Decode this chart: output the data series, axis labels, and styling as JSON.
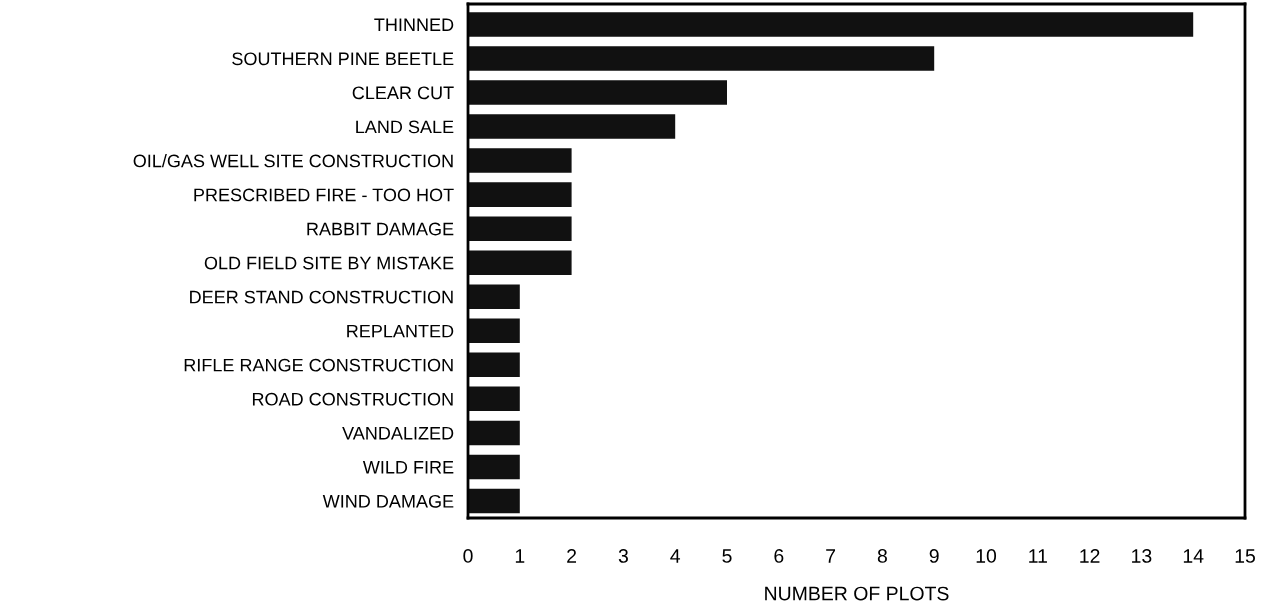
{
  "chart_data": {
    "type": "bar",
    "orientation": "horizontal",
    "xlabel": "NUMBER OF PLOTS",
    "categories": [
      "THINNED",
      "SOUTHERN PINE BEETLE",
      "CLEAR CUT",
      "LAND SALE",
      "OIL/GAS WELL SITE CONSTRUCTION",
      "PRESCRIBED FIRE - TOO HOT",
      "RABBIT DAMAGE",
      "OLD FIELD SITE BY MISTAKE",
      "DEER STAND CONSTRUCTION",
      "REPLANTED",
      "RIFLE RANGE CONSTRUCTION",
      "ROAD CONSTRUCTION",
      "VANDALIZED",
      "WILD FIRE",
      "WIND DAMAGE"
    ],
    "values": [
      14,
      9,
      5,
      4,
      2,
      2,
      2,
      2,
      1,
      1,
      1,
      1,
      1,
      1,
      1
    ],
    "color": "#111111",
    "xlim": [
      0,
      15
    ],
    "xticks": [
      0,
      1,
      2,
      3,
      4,
      5,
      6,
      7,
      8,
      9,
      10,
      11,
      12,
      13,
      14,
      15
    ]
  }
}
